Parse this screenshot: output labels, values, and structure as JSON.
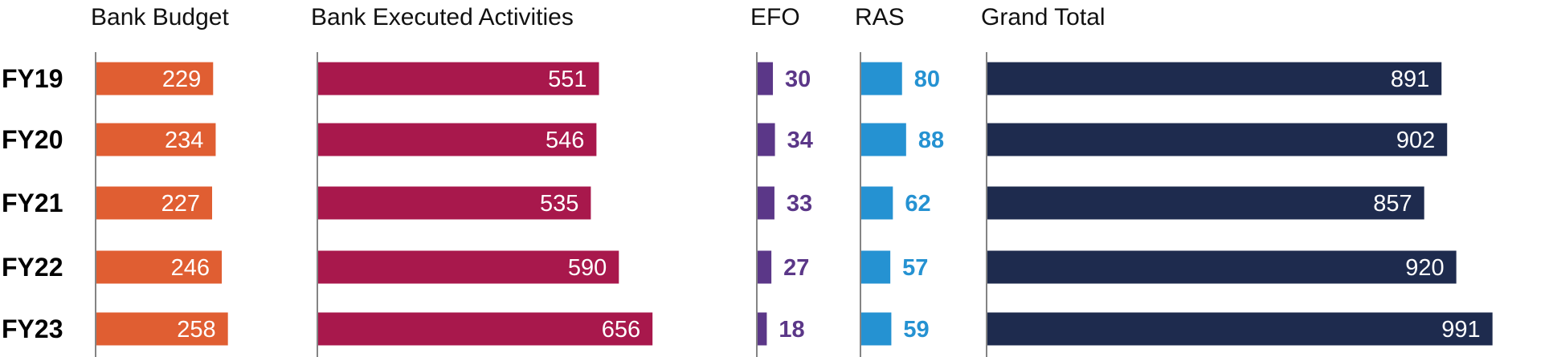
{
  "chart_data": {
    "type": "bar",
    "orientation": "horizontal",
    "categories": [
      "FY19",
      "FY20",
      "FY21",
      "FY22",
      "FY23"
    ],
    "series": [
      {
        "name": "Bank Budget",
        "values": [
          229,
          234,
          227,
          246,
          258
        ],
        "color": "#E05E32"
      },
      {
        "name": "Bank Executed Activities",
        "values": [
          551,
          546,
          535,
          590,
          656
        ],
        "color": "#A8184C"
      },
      {
        "name": "EFO",
        "values": [
          30,
          34,
          33,
          27,
          18
        ],
        "color": "#5B3788"
      },
      {
        "name": "RAS",
        "values": [
          80,
          88,
          62,
          57,
          59
        ],
        "color": "#2592D2"
      },
      {
        "name": "Grand Total",
        "values": [
          891,
          902,
          857,
          920,
          991
        ],
        "color": "#1E2B4E"
      }
    ]
  }
}
